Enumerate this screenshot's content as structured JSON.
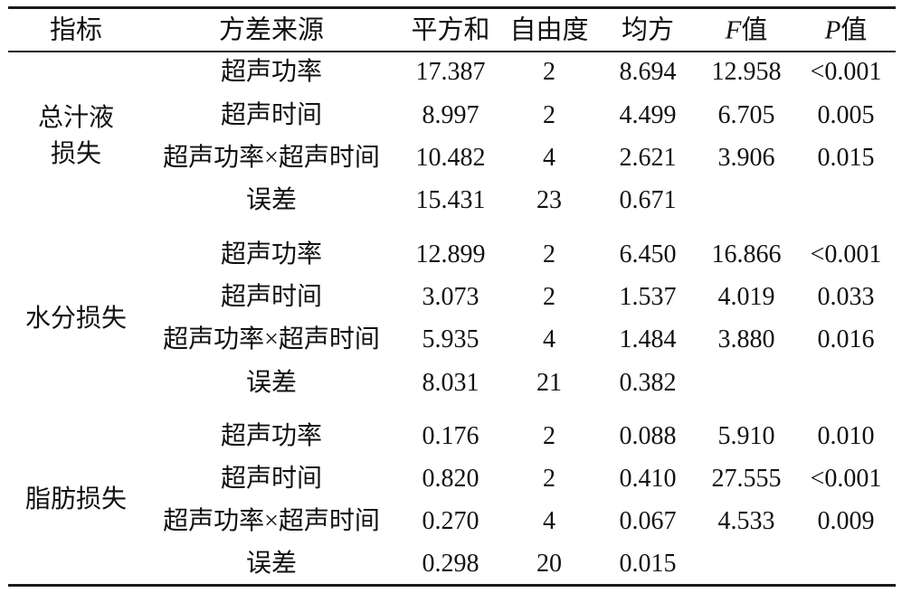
{
  "headers": {
    "indicator": "指标",
    "source": "方差来源",
    "ss": "平方和",
    "df": "自由度",
    "ms": "均方",
    "f_italic": "F",
    "f_suffix": "值",
    "p_italic": "P",
    "p_suffix": "值"
  },
  "groups": [
    {
      "label_line1": "总汁液",
      "label_line2": "损失",
      "rows": [
        {
          "source": "超声功率",
          "ss": "17.387",
          "df": "2",
          "ms": "8.694",
          "f": "12.958",
          "p": "<0.001"
        },
        {
          "source": "超声时间",
          "ss": "8.997",
          "df": "2",
          "ms": "4.499",
          "f": "6.705",
          "p": "0.005"
        },
        {
          "source": "超声功率×超声时间",
          "ss": "10.482",
          "df": "4",
          "ms": "2.621",
          "f": "3.906",
          "p": "0.015"
        },
        {
          "source": "误差",
          "ss": "15.431",
          "df": "23",
          "ms": "0.671",
          "f": "",
          "p": ""
        }
      ]
    },
    {
      "label_line1": "水分损失",
      "label_line2": "",
      "rows": [
        {
          "source": "超声功率",
          "ss": "12.899",
          "df": "2",
          "ms": "6.450",
          "f": "16.866",
          "p": "<0.001"
        },
        {
          "source": "超声时间",
          "ss": "3.073",
          "df": "2",
          "ms": "1.537",
          "f": "4.019",
          "p": "0.033"
        },
        {
          "source": "超声功率×超声时间",
          "ss": "5.935",
          "df": "4",
          "ms": "1.484",
          "f": "3.880",
          "p": "0.016"
        },
        {
          "source": "误差",
          "ss": "8.031",
          "df": "21",
          "ms": "0.382",
          "f": "",
          "p": ""
        }
      ]
    },
    {
      "label_line1": "脂肪损失",
      "label_line2": "",
      "rows": [
        {
          "source": "超声功率",
          "ss": "0.176",
          "df": "2",
          "ms": "0.088",
          "f": "5.910",
          "p": "0.010"
        },
        {
          "source": "超声时间",
          "ss": "0.820",
          "df": "2",
          "ms": "0.410",
          "f": "27.555",
          "p": "<0.001"
        },
        {
          "source": "超声功率×超声时间",
          "ss": "0.270",
          "df": "4",
          "ms": "0.067",
          "f": "4.533",
          "p": "0.009"
        },
        {
          "source": "误差",
          "ss": "0.298",
          "df": "20",
          "ms": "0.015",
          "f": "",
          "p": ""
        }
      ]
    }
  ]
}
